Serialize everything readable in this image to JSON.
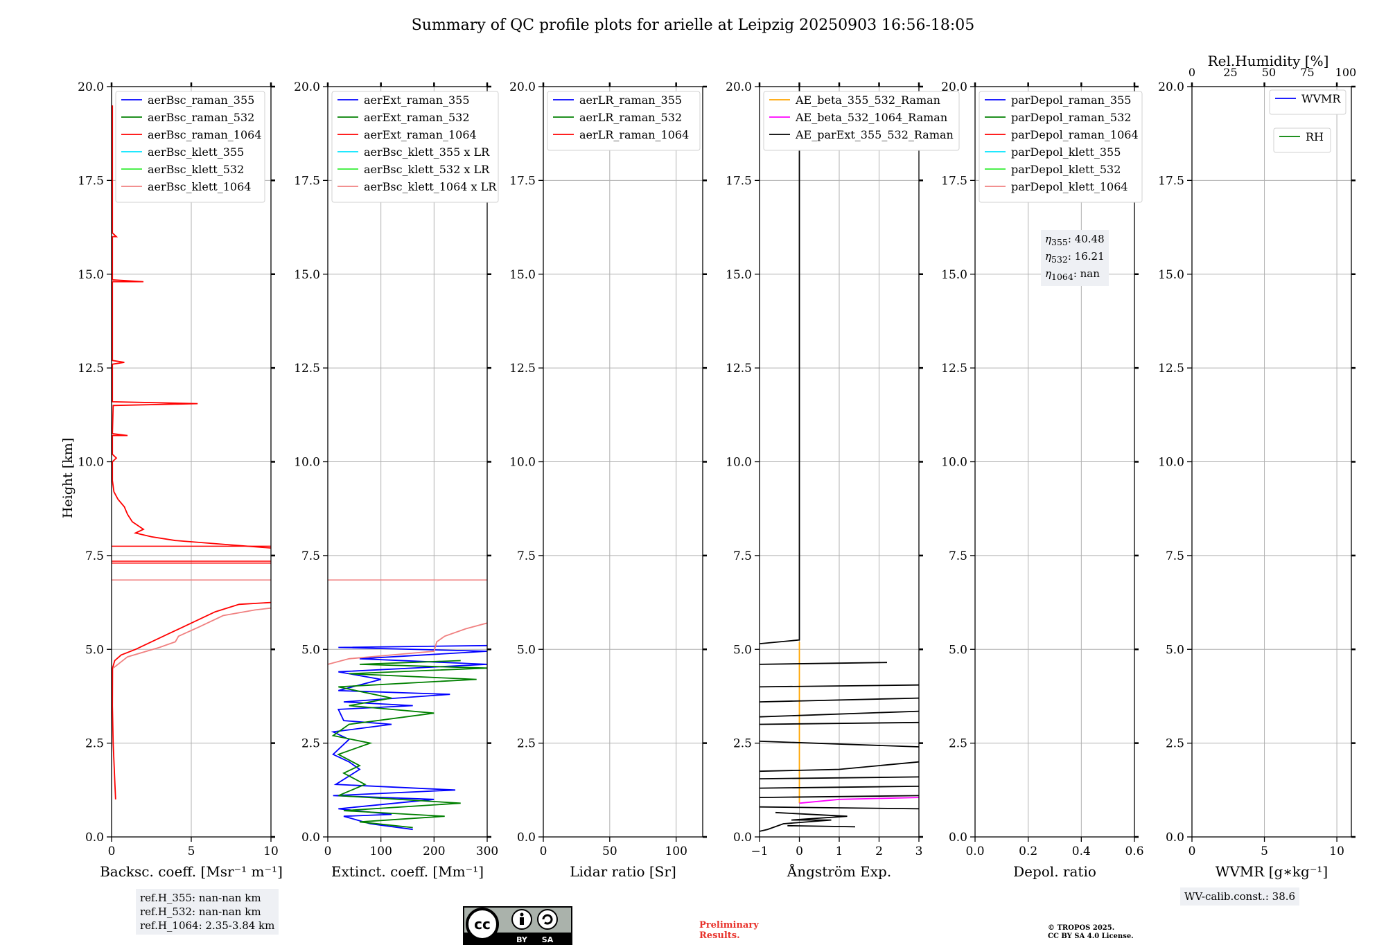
{
  "title": "Summary of QC profile plots for arielle at Leipzig 20250903 16:56-18:05",
  "ylabel": "Height [km]",
  "yticks": [
    "0.0",
    "2.5",
    "5.0",
    "7.5",
    "10.0",
    "12.5",
    "15.0",
    "17.5",
    "20.0"
  ],
  "colors": {
    "blue": "#0000ff",
    "green": "#008000",
    "red": "#ff0000",
    "cyan": "#00e5ff",
    "lime": "#33ee33",
    "pink": "#f08080",
    "orange": "#ffa500",
    "magenta": "#ff00ff",
    "black": "#000000",
    "grid": "#b0b0b0",
    "box": "#eef0f4"
  },
  "chart_data": [
    {
      "id": "backscatter",
      "type": "line",
      "xlabel": "Backsc. coeff. [Msr⁻¹ m⁻¹]",
      "xlim": [
        0,
        10
      ],
      "ylim": [
        0,
        20
      ],
      "xticks": [
        {
          "v": 0,
          "t": "0"
        },
        {
          "v": 5,
          "t": "5"
        },
        {
          "v": 10,
          "t": "10"
        }
      ],
      "legend": [
        {
          "label": "aerBsc_raman_355",
          "color": "#0000ff"
        },
        {
          "label": "aerBsc_raman_532",
          "color": "#008000"
        },
        {
          "label": "aerBsc_raman_1064",
          "color": "#ff0000"
        },
        {
          "label": "aerBsc_klett_355",
          "color": "#00e5ff"
        },
        {
          "label": "aerBsc_klett_532",
          "color": "#33ee33"
        },
        {
          "label": "aerBsc_klett_1064",
          "color": "#f08080"
        }
      ],
      "series": [
        {
          "name": "aerBsc_raman_1064",
          "color": "#ff0000",
          "points": [
            [
              0.25,
              1.0
            ],
            [
              0.2,
              1.5
            ],
            [
              0.1,
              2.5
            ],
            [
              0.05,
              3.5
            ],
            [
              0.06,
              4.5
            ],
            [
              0.2,
              4.7
            ],
            [
              0.6,
              4.85
            ],
            [
              1.5,
              5.0
            ],
            [
              2.5,
              5.2
            ],
            [
              3.5,
              5.4
            ],
            [
              4.5,
              5.6
            ],
            [
              5.5,
              5.8
            ],
            [
              6.5,
              6.0
            ],
            [
              8.0,
              6.2
            ],
            [
              10.0,
              6.25
            ]
          ]
        },
        {
          "name": "aerBsc_raman_1064_upper",
          "color": "#ff0000",
          "points": [
            [
              10.0,
              7.7
            ],
            [
              7.0,
              7.8
            ],
            [
              4.0,
              7.9
            ],
            [
              2.5,
              8.0
            ],
            [
              1.5,
              8.1
            ],
            [
              2.0,
              8.2
            ],
            [
              1.3,
              8.4
            ],
            [
              1.0,
              8.6
            ],
            [
              0.8,
              8.8
            ],
            [
              0.4,
              9.0
            ],
            [
              0.15,
              9.2
            ],
            [
              0.05,
              9.5
            ],
            [
              0.05,
              10.0
            ],
            [
              0.3,
              10.1
            ],
            [
              0.05,
              10.2
            ],
            [
              0.05,
              10.7
            ],
            [
              1.0,
              10.7
            ],
            [
              0.05,
              10.75
            ],
            [
              0.1,
              11.5
            ],
            [
              5.4,
              11.55
            ],
            [
              0.05,
              11.6
            ],
            [
              0.05,
              12.6
            ],
            [
              0.8,
              12.65
            ],
            [
              0.05,
              12.7
            ],
            [
              0.05,
              14.8
            ],
            [
              2.0,
              14.8
            ],
            [
              0.05,
              14.85
            ],
            [
              0.05,
              16.0
            ],
            [
              0.3,
              16.0
            ],
            [
              0.05,
              16.1
            ],
            [
              0.05,
              19.5
            ]
          ]
        },
        {
          "name": "aerBsc_klett_1064",
          "color": "#f08080",
          "points": [
            [
              0.1,
              4.5
            ],
            [
              1.0,
              4.8
            ],
            [
              3.0,
              5.05
            ],
            [
              4.0,
              5.2
            ],
            [
              4.2,
              5.35
            ],
            [
              5.5,
              5.6
            ],
            [
              7.0,
              5.9
            ],
            [
              9.0,
              6.05
            ],
            [
              10.0,
              6.1
            ]
          ]
        }
      ],
      "hlines": [
        {
          "y": 7.3,
          "color": "#ff0000"
        },
        {
          "y": 7.35,
          "color": "#ff0000"
        },
        {
          "y": 6.85,
          "color": "#f08080"
        },
        {
          "y": 7.75,
          "color": "#ff0000"
        }
      ],
      "infobox": [
        "ref.H_355: nan-nan km",
        "ref.H_532: nan-nan km",
        "ref.H_1064: 2.35-3.84 km"
      ]
    },
    {
      "id": "extinction",
      "type": "line",
      "xlabel": "Extinct. coeff. [Mm⁻¹]",
      "xlim": [
        0,
        300
      ],
      "ylim": [
        0,
        20
      ],
      "xticks": [
        {
          "v": 0,
          "t": "0"
        },
        {
          "v": 100,
          "t": "100"
        },
        {
          "v": 200,
          "t": "200"
        },
        {
          "v": 300,
          "t": "300"
        }
      ],
      "legend": [
        {
          "label": "aerExt_raman_355",
          "color": "#0000ff"
        },
        {
          "label": "aerExt_raman_532",
          "color": "#008000"
        },
        {
          "label": "aerExt_raman_1064",
          "color": "#ff0000"
        },
        {
          "label": "aerBsc_klett_355 x LR",
          "color": "#00e5ff"
        },
        {
          "label": "aerBsc_klett_532 x LR",
          "color": "#33ee33"
        },
        {
          "label": "aerBsc_klett_1064 x LR",
          "color": "#f08080"
        }
      ],
      "series": [
        {
          "name": "aerExt_raman_355",
          "color": "#0000ff",
          "points": [
            [
              160,
              0.2
            ],
            [
              80,
              0.35
            ],
            [
              30,
              0.55
            ],
            [
              120,
              0.6
            ],
            [
              20,
              0.75
            ],
            [
              200,
              1.0
            ],
            [
              10,
              1.1
            ],
            [
              240,
              1.25
            ],
            [
              15,
              1.4
            ],
            [
              60,
              1.8
            ],
            [
              40,
              2.0
            ],
            [
              10,
              2.2
            ],
            [
              40,
              2.6
            ],
            [
              10,
              2.8
            ],
            [
              120,
              3.0
            ],
            [
              30,
              3.1
            ],
            [
              20,
              3.4
            ],
            [
              160,
              3.5
            ],
            [
              30,
              3.6
            ],
            [
              230,
              3.8
            ],
            [
              20,
              3.9
            ],
            [
              100,
              4.2
            ],
            [
              20,
              4.4
            ],
            [
              300,
              4.6
            ],
            [
              60,
              4.75
            ],
            [
              300,
              4.95
            ],
            [
              20,
              5.05
            ],
            [
              300,
              5.1
            ]
          ]
        },
        {
          "name": "aerExt_raman_532",
          "color": "#008000",
          "points": [
            [
              160,
              0.25
            ],
            [
              60,
              0.4
            ],
            [
              220,
              0.55
            ],
            [
              30,
              0.7
            ],
            [
              250,
              0.9
            ],
            [
              20,
              1.1
            ],
            [
              70,
              1.4
            ],
            [
              30,
              1.7
            ],
            [
              60,
              1.9
            ],
            [
              20,
              2.2
            ],
            [
              80,
              2.5
            ],
            [
              10,
              2.7
            ],
            [
              40,
              3.0
            ],
            [
              200,
              3.3
            ],
            [
              40,
              3.5
            ],
            [
              120,
              3.7
            ],
            [
              20,
              4.0
            ],
            [
              280,
              4.2
            ],
            [
              40,
              4.35
            ],
            [
              300,
              4.5
            ],
            [
              60,
              4.6
            ],
            [
              250,
              4.7
            ]
          ]
        },
        {
          "name": "aerBsc_klett_1064 x LR",
          "color": "#f08080",
          "points": [
            [
              0,
              4.6
            ],
            [
              40,
              4.75
            ],
            [
              120,
              4.85
            ],
            [
              200,
              4.95
            ],
            [
              205,
              5.2
            ],
            [
              220,
              5.35
            ],
            [
              260,
              5.55
            ],
            [
              300,
              5.7
            ]
          ]
        }
      ],
      "hlines": [
        {
          "y": 6.85,
          "color": "#f08080"
        }
      ]
    },
    {
      "id": "lidarratio",
      "type": "line",
      "xlabel": "Lidar ratio [Sr]",
      "xlim": [
        0,
        120
      ],
      "ylim": [
        0,
        20
      ],
      "xticks": [
        {
          "v": 0,
          "t": "0"
        },
        {
          "v": 50,
          "t": "50"
        },
        {
          "v": 100,
          "t": "100"
        }
      ],
      "legend": [
        {
          "label": "aerLR_raman_355",
          "color": "#0000ff"
        },
        {
          "label": "aerLR_raman_532",
          "color": "#008000"
        },
        {
          "label": "aerLR_raman_1064",
          "color": "#ff0000"
        }
      ],
      "series": []
    },
    {
      "id": "angstrom",
      "type": "line",
      "xlabel": "Ångström Exp.",
      "xlim": [
        -1,
        3
      ],
      "ylim": [
        0,
        20
      ],
      "xticks": [
        {
          "v": -1,
          "t": "−1"
        },
        {
          "v": 0,
          "t": "0"
        },
        {
          "v": 1,
          "t": "1"
        },
        {
          "v": 2,
          "t": "2"
        },
        {
          "v": 3,
          "t": "3"
        }
      ],
      "legend": [
        {
          "label": "AE_beta_355_532_Raman",
          "color": "#ffa500"
        },
        {
          "label": "AE_beta_532_1064_Raman",
          "color": "#ff00ff"
        },
        {
          "label": "AE_parExt_355_532_Raman",
          "color": "#000000"
        }
      ],
      "series": [
        {
          "name": "AE_beta_355_532_Raman",
          "color": "#ffa500",
          "points": [
            [
              0,
              0.9
            ],
            [
              0,
              5.2
            ]
          ]
        },
        {
          "name": "AE_beta_532_1064_Raman",
          "color": "#ff00ff",
          "points": [
            [
              0,
              0.9
            ],
            [
              1.0,
              1.0
            ],
            [
              3.0,
              1.05
            ]
          ]
        },
        {
          "name": "AE_parExt_355_532_Raman",
          "color": "#000000",
          "points": [
            [
              0,
              20
            ],
            [
              0,
              5.25
            ],
            [
              -1,
              5.15
            ]
          ]
        },
        {
          "name": "AE_parExt_seg2",
          "color": "#000000",
          "points": [
            [
              -1,
              4.6
            ],
            [
              2.2,
              4.65
            ]
          ]
        },
        {
          "name": "AE_parExt_seg3",
          "color": "#000000",
          "points": [
            [
              -1,
              4.0
            ],
            [
              3,
              4.05
            ]
          ]
        },
        {
          "name": "AE_parExt_seg4",
          "color": "#000000",
          "points": [
            [
              -1,
              3.6
            ],
            [
              3,
              3.7
            ]
          ]
        },
        {
          "name": "AE_parExt_seg5",
          "color": "#000000",
          "points": [
            [
              -1,
              3.2
            ],
            [
              3,
              3.35
            ]
          ]
        },
        {
          "name": "AE_parExt_seg6",
          "color": "#000000",
          "points": [
            [
              -1,
              3.0
            ],
            [
              3,
              3.05
            ]
          ]
        },
        {
          "name": "AE_parExt_seg7",
          "color": "#000000",
          "points": [
            [
              -1,
              2.55
            ],
            [
              3,
              2.4
            ]
          ]
        },
        {
          "name": "AE_parExt_seg8",
          "color": "#000000",
          "points": [
            [
              -1,
              1.75
            ],
            [
              1.0,
              1.8
            ],
            [
              3,
              2.0
            ]
          ]
        },
        {
          "name": "AE_parExt_seg9",
          "color": "#000000",
          "points": [
            [
              -1,
              1.55
            ],
            [
              3,
              1.6
            ]
          ]
        },
        {
          "name": "AE_parExt_seg10",
          "color": "#000000",
          "points": [
            [
              -1,
              1.3
            ],
            [
              3,
              1.35
            ]
          ]
        },
        {
          "name": "AE_parExt_seg11",
          "color": "#000000",
          "points": [
            [
              -1,
              1.05
            ],
            [
              3,
              1.1
            ]
          ]
        },
        {
          "name": "AE_parExt_seg12",
          "color": "#000000",
          "points": [
            [
              -1,
              0.8
            ],
            [
              3,
              0.75
            ]
          ]
        },
        {
          "name": "AE_parExt_seg13",
          "color": "#000000",
          "points": [
            [
              -0.6,
              0.65
            ],
            [
              1.2,
              0.55
            ],
            [
              -0.2,
              0.45
            ],
            [
              0.8,
              0.45
            ],
            [
              -0.4,
              0.35
            ],
            [
              -0.8,
              0.2
            ],
            [
              -1,
              0.15
            ]
          ]
        },
        {
          "name": "AE_parExt_seg14",
          "color": "#000000",
          "points": [
            [
              -0.3,
              0.3
            ],
            [
              1.4,
              0.27
            ]
          ]
        }
      ]
    },
    {
      "id": "depol",
      "type": "line",
      "xlabel": "Depol. ratio",
      "xlim": [
        0,
        0.6
      ],
      "ylim": [
        0,
        20
      ],
      "xticks": [
        {
          "v": 0,
          "t": "0.0"
        },
        {
          "v": 0.2,
          "t": "0.2"
        },
        {
          "v": 0.4,
          "t": "0.4"
        },
        {
          "v": 0.6,
          "t": "0.6"
        }
      ],
      "legend": [
        {
          "label": "parDepol_raman_355",
          "color": "#0000ff"
        },
        {
          "label": "parDepol_raman_532",
          "color": "#008000"
        },
        {
          "label": "parDepol_raman_1064",
          "color": "#ff0000"
        },
        {
          "label": "parDepol_klett_355",
          "color": "#00e5ff"
        },
        {
          "label": "parDepol_klett_532",
          "color": "#33ee33"
        },
        {
          "label": "parDepol_klett_1064",
          "color": "#f08080"
        }
      ],
      "series": [],
      "infobox_eta": [
        {
          "sub": "355",
          "val": ": 40.48"
        },
        {
          "sub": "532",
          "val": ": 16.21"
        },
        {
          "sub": "1064",
          "val": ": nan"
        }
      ]
    },
    {
      "id": "wvmr",
      "type": "line",
      "xlabel": "WVMR [g∗kg⁻¹]",
      "xlim": [
        0,
        11
      ],
      "ylim": [
        0,
        20
      ],
      "xticks": [
        {
          "v": 0,
          "t": "0"
        },
        {
          "v": 5,
          "t": "5"
        },
        {
          "v": 10,
          "t": "10"
        }
      ],
      "top_axis": {
        "label": "Rel.Humidity [%]",
        "xlim": [
          0,
          100
        ],
        "ticks": [
          "0",
          "25",
          "50",
          "75",
          "100"
        ]
      },
      "legend": [
        {
          "label": "WVMR",
          "color": "#0000ff"
        }
      ],
      "legend2": [
        {
          "label": "RH",
          "color": "#008000"
        }
      ],
      "series": [],
      "infobox": [
        "WV-calib.const.: 38.6"
      ]
    }
  ],
  "footer": {
    "cc_text": "cc",
    "cc_by": "BY",
    "cc_sa": "SA",
    "preliminary_1": "Preliminary",
    "preliminary_2": "Results.",
    "copyright_1": "© TROPOS 2025.",
    "copyright_2": "CC BY SA 4.0 License."
  }
}
